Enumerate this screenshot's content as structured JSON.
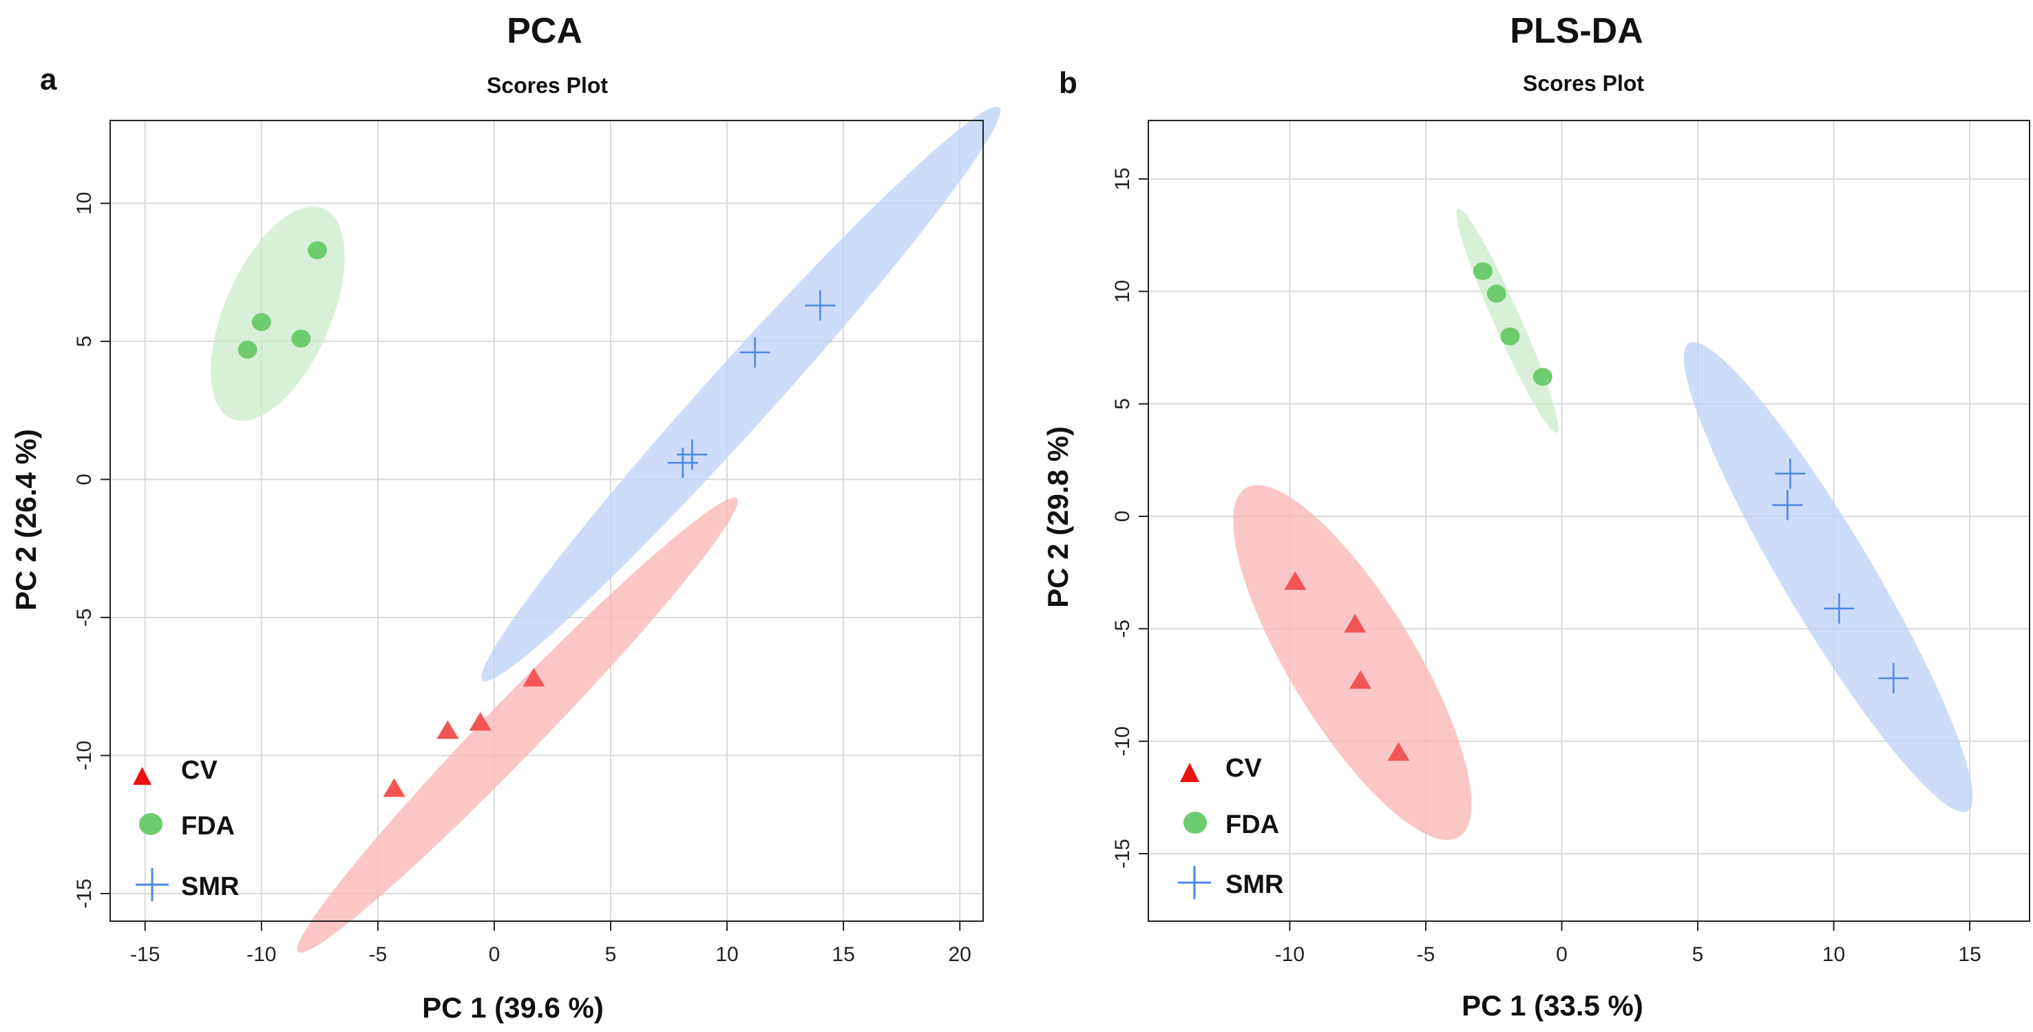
{
  "chart_data": [
    {
      "type": "scatter",
      "panel_label": "a",
      "title": "PCA",
      "subtitle": "Scores Plot",
      "xlabel": "PC 1 (39.6 %)",
      "ylabel": "PC 2 (26.4 %)",
      "xlim": [
        -16.5,
        21
      ],
      "ylim": [
        -16,
        13
      ],
      "xticks": [
        -15,
        -10,
        -5,
        0,
        5,
        10,
        15,
        20
      ],
      "yticks": [
        -15,
        -10,
        -5,
        0,
        5,
        10
      ],
      "grid": true,
      "legend_position": "bottom-left",
      "series": [
        {
          "name": "CV",
          "marker": "triangle",
          "color": "#f25555",
          "ellipse_color": "#f9b3b3",
          "points": [
            [
              -4.3,
              -11.2
            ],
            [
              -2.0,
              -9.1
            ],
            [
              -0.6,
              -8.8
            ],
            [
              1.7,
              -7.2
            ]
          ],
          "ellipse": {
            "center": [
              1.0,
              -8.9
            ],
            "semi_major": 12.5,
            "semi_minor": 1.1,
            "angle_deg": 41
          }
        },
        {
          "name": "FDA",
          "marker": "circle",
          "color": "#6dcc6d",
          "ellipse_color": "#c9ebc9",
          "points": [
            [
              -10.6,
              4.7
            ],
            [
              -10.0,
              5.7
            ],
            [
              -8.3,
              5.1
            ],
            [
              -7.6,
              8.3
            ]
          ],
          "ellipse": {
            "center": [
              -9.3,
              6.0
            ],
            "semi_major": 4.3,
            "semi_minor": 2.2,
            "angle_deg": 60
          }
        },
        {
          "name": "SMR",
          "marker": "plus",
          "color": "#4a86e8",
          "ellipse_color": "#bcd2f7",
          "points": [
            [
              8.1,
              0.6
            ],
            [
              8.5,
              0.9
            ],
            [
              11.2,
              4.6
            ],
            [
              14.0,
              6.3
            ]
          ],
          "ellipse": {
            "center": [
              10.6,
              3.1
            ],
            "semi_major": 15.2,
            "semi_minor": 1.3,
            "angle_deg": 43
          }
        }
      ]
    },
    {
      "type": "scatter",
      "panel_label": "b",
      "title": "PLS-DA",
      "subtitle": "Scores Plot",
      "xlabel": "PC 1 (33.5 %)",
      "ylabel": "PC 2 (29.8 %)",
      "xlim": [
        -15.2,
        17.2
      ],
      "ylim": [
        -18.0,
        17.6
      ],
      "xticks": [
        -10,
        -5,
        0,
        5,
        10,
        15
      ],
      "yticks": [
        -15,
        -10,
        -5,
        0,
        5,
        10,
        15
      ],
      "grid": true,
      "legend_position": "bottom-left",
      "series": [
        {
          "name": "CV",
          "marker": "triangle",
          "color": "#f25555",
          "ellipse_color": "#f9b3b3",
          "points": [
            [
              -9.8,
              -2.9
            ],
            [
              -7.6,
              -4.8
            ],
            [
              -7.4,
              -7.3
            ],
            [
              -6.0,
              -10.5
            ]
          ],
          "ellipse": {
            "center": [
              -7.7,
              -6.5
            ],
            "semi_major": 8.7,
            "semi_minor": 2.4,
            "angle_deg": -64
          }
        },
        {
          "name": "FDA",
          "marker": "circle",
          "color": "#6dcc6d",
          "ellipse_color": "#c9ebc9",
          "points": [
            [
              -2.9,
              10.9
            ],
            [
              -2.4,
              9.9
            ],
            [
              -1.9,
              8.0
            ],
            [
              -0.7,
              6.2
            ]
          ],
          "ellipse": {
            "center": [
              -2.0,
              8.7
            ],
            "semi_major": 5.3,
            "semi_minor": 0.5,
            "angle_deg": -70
          }
        },
        {
          "name": "SMR",
          "marker": "plus",
          "color": "#4a86e8",
          "ellipse_color": "#bcd2f7",
          "points": [
            [
              8.4,
              1.9
            ],
            [
              8.3,
              0.5
            ],
            [
              10.2,
              -4.1
            ],
            [
              12.2,
              -7.2
            ]
          ],
          "ellipse": {
            "center": [
              9.8,
              -2.7
            ],
            "semi_major": 11.6,
            "semi_minor": 1.7,
            "angle_deg": -64
          }
        }
      ]
    }
  ]
}
